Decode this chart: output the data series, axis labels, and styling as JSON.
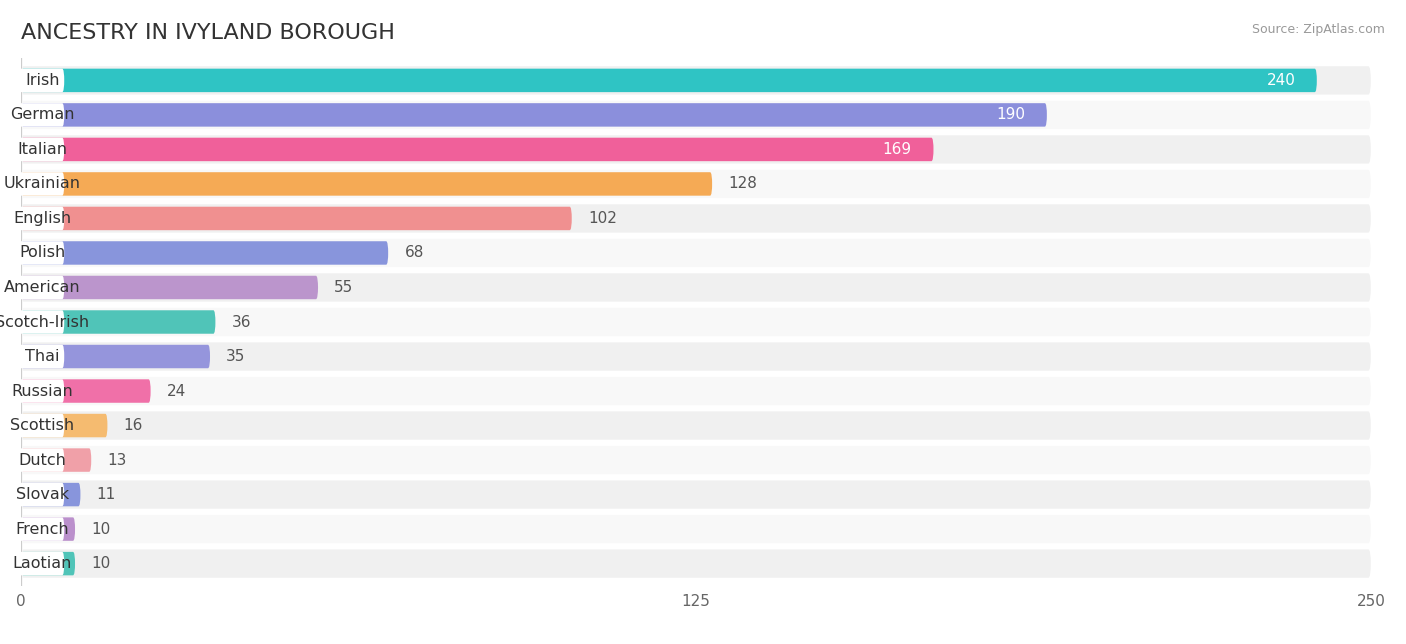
{
  "title": "ANCESTRY IN IVYLAND BOROUGH",
  "source": "Source: ZipAtlas.com",
  "categories": [
    "Irish",
    "German",
    "Italian",
    "Ukrainian",
    "English",
    "Polish",
    "American",
    "Scotch-Irish",
    "Thai",
    "Russian",
    "Scottish",
    "Dutch",
    "Slovak",
    "French",
    "Laotian"
  ],
  "values": [
    240,
    190,
    169,
    128,
    102,
    68,
    55,
    36,
    35,
    24,
    16,
    13,
    11,
    10,
    10
  ],
  "bar_colors": [
    "#2fc4c4",
    "#8b8fdc",
    "#f0609a",
    "#f5aa55",
    "#f09090",
    "#8895dc",
    "#bb95cc",
    "#50c4b8",
    "#9595dc",
    "#f070a8",
    "#f5bb70",
    "#f0a0a8",
    "#8895dc",
    "#bb90cc",
    "#50c4b8"
  ],
  "xlim": [
    0,
    250
  ],
  "xticks": [
    0,
    125,
    250
  ],
  "title_fontsize": 16,
  "tick_fontsize": 11,
  "label_fontsize": 11.5,
  "value_fontsize": 11
}
